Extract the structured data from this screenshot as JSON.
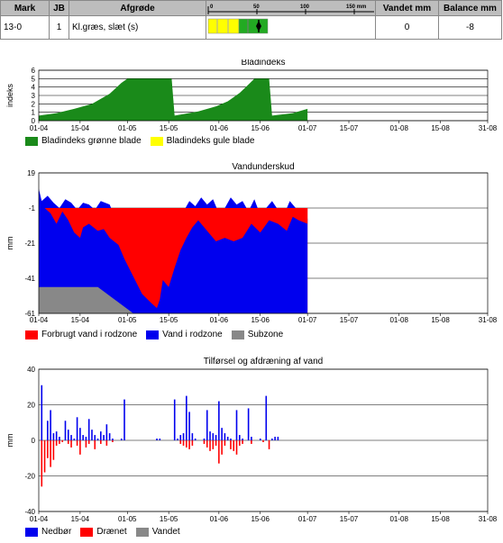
{
  "table": {
    "headers": [
      "Mark",
      "JB",
      "Afgrøde",
      "",
      "Vandet mm",
      "Balance mm"
    ],
    "scale_ticks": [
      "0",
      "50",
      "100",
      "150 mm"
    ],
    "row": {
      "mark": "13-0",
      "jb": "1",
      "crop": "Kl.græs,  slæt (s)",
      "vandet": "0",
      "balance": "-8"
    }
  },
  "chart_data": [
    {
      "type": "area",
      "title": "Bladindeks",
      "ylabel": "indeks",
      "ylim": [
        0,
        6
      ],
      "yticks": [
        "0",
        "1",
        "2",
        "3",
        "4",
        "5",
        "6"
      ],
      "x_ticks": [
        "01-04",
        "15-04",
        "01-05",
        "15-05",
        "01-06",
        "15-06",
        "01-07",
        "15-07",
        "01-08",
        "15-08",
        "31-08"
      ],
      "series": [
        {
          "name": "Bladindeks grønne blade",
          "color": "#1a8a1a",
          "points": [
            [
              0,
              0.6
            ],
            [
              6,
              0.9
            ],
            [
              12,
              1.4
            ],
            [
              18,
              2.0
            ],
            [
              24,
              3.2
            ],
            [
              28,
              4.5
            ],
            [
              30,
              5.0
            ],
            [
              45,
              5.0
            ],
            [
              46,
              0.6
            ],
            [
              54,
              1.1
            ],
            [
              60,
              1.7
            ],
            [
              64,
              2.3
            ],
            [
              68,
              3.3
            ],
            [
              71,
              4.3
            ],
            [
              73,
              5.0
            ],
            [
              78,
              5.0
            ],
            [
              79,
              0.6
            ],
            [
              86,
              0.9
            ],
            [
              91,
              1.4
            ]
          ]
        },
        {
          "name": "Bladindeks gule blade",
          "color": "#ffff00",
          "points": []
        }
      ]
    },
    {
      "type": "area",
      "title": "Vandunderskud",
      "ylabel": "mm",
      "ylim": [
        -61,
        19
      ],
      "yticks": [
        "19",
        "-1",
        "-21",
        "-41",
        "-61"
      ],
      "x_ticks": [
        "01-04",
        "15-04",
        "01-05",
        "15-05",
        "01-06",
        "15-06",
        "01-07",
        "15-07",
        "01-08",
        "15-08",
        "31-08"
      ],
      "series": [
        {
          "name": "Forbrugt vand i rodzone",
          "color": "#ff0000",
          "points": [
            [
              0,
              4
            ],
            [
              2,
              0
            ],
            [
              4,
              -4
            ],
            [
              6,
              -10
            ],
            [
              8,
              -3
            ],
            [
              10,
              -8
            ],
            [
              12,
              -15
            ],
            [
              14,
              -18
            ],
            [
              15,
              -12
            ],
            [
              17,
              -10
            ],
            [
              20,
              -14
            ],
            [
              22,
              -13
            ],
            [
              24,
              -18
            ],
            [
              27,
              -22
            ],
            [
              29,
              -30
            ],
            [
              32,
              -40
            ],
            [
              35,
              -50
            ],
            [
              38,
              -55
            ],
            [
              40,
              -58
            ],
            [
              41,
              -53
            ],
            [
              42,
              -42
            ],
            [
              44,
              -46
            ],
            [
              46,
              -35
            ],
            [
              48,
              -25
            ],
            [
              50,
              -18
            ],
            [
              52,
              -12
            ],
            [
              54,
              -8
            ],
            [
              57,
              -14
            ],
            [
              60,
              -20
            ],
            [
              63,
              -18
            ],
            [
              66,
              -20
            ],
            [
              69,
              -18
            ],
            [
              72,
              -10
            ],
            [
              75,
              -15
            ],
            [
              78,
              -8
            ],
            [
              81,
              -10
            ],
            [
              84,
              -14
            ],
            [
              86,
              -6
            ],
            [
              88,
              -8
            ],
            [
              91,
              -10
            ]
          ]
        },
        {
          "name": "Vand i rodzone",
          "color": "#0000ee",
          "points": [
            [
              0,
              10
            ],
            [
              1,
              3
            ],
            [
              3,
              6
            ],
            [
              5,
              2
            ],
            [
              7,
              -1
            ],
            [
              9,
              4
            ],
            [
              11,
              2
            ],
            [
              13,
              -2
            ],
            [
              15,
              2
            ],
            [
              17,
              1
            ],
            [
              19,
              -2
            ],
            [
              21,
              3
            ],
            [
              24,
              1
            ],
            [
              26,
              -7
            ],
            [
              28,
              -2
            ],
            [
              30,
              -8
            ],
            [
              32,
              -4
            ],
            [
              33,
              -8
            ],
            [
              35,
              -20
            ],
            [
              37,
              -8
            ],
            [
              38,
              -10
            ],
            [
              39,
              -4
            ],
            [
              41,
              -10
            ],
            [
              43,
              -1
            ],
            [
              47,
              -1
            ],
            [
              49,
              -3
            ],
            [
              51,
              3
            ],
            [
              53,
              0
            ],
            [
              55,
              5
            ],
            [
              57,
              1
            ],
            [
              59,
              4
            ],
            [
              61,
              -4
            ],
            [
              63,
              -1
            ],
            [
              65,
              5
            ],
            [
              67,
              1
            ],
            [
              69,
              3
            ],
            [
              71,
              -3
            ],
            [
              73,
              4
            ],
            [
              75,
              -5
            ],
            [
              77,
              -1
            ],
            [
              79,
              3
            ],
            [
              81,
              -2
            ],
            [
              83,
              -5
            ],
            [
              85,
              3
            ],
            [
              87,
              -1
            ],
            [
              89,
              -7
            ],
            [
              91,
              -7
            ]
          ]
        },
        {
          "name": "Subzone",
          "color": "#888888",
          "points": [
            [
              0,
              -46
            ],
            [
              20,
              -46
            ],
            [
              32,
              -61
            ]
          ]
        }
      ]
    },
    {
      "type": "bar",
      "title": "Tilførsel og afdræning af vand",
      "ylabel": "mm",
      "ylim": [
        -40,
        40
      ],
      "yticks": [
        "40",
        "20",
        "0",
        "-20",
        "-40"
      ],
      "x_ticks": [
        "01-04",
        "15-04",
        "01-05",
        "15-05",
        "01-06",
        "15-06",
        "01-07",
        "15-07",
        "01-08",
        "15-08",
        "31-08"
      ],
      "series": [
        {
          "name": "Nedbør",
          "color": "#0000ee",
          "points": [
            [
              1,
              31
            ],
            [
              3,
              11
            ],
            [
              4,
              17
            ],
            [
              5,
              4
            ],
            [
              6,
              5
            ],
            [
              7,
              2
            ],
            [
              9,
              11
            ],
            [
              10,
              6
            ],
            [
              11,
              3
            ],
            [
              12,
              1
            ],
            [
              13,
              13
            ],
            [
              14,
              7
            ],
            [
              15,
              3
            ],
            [
              16,
              2
            ],
            [
              17,
              12
            ],
            [
              18,
              6
            ],
            [
              19,
              3
            ],
            [
              20,
              1
            ],
            [
              21,
              5
            ],
            [
              22,
              3
            ],
            [
              23,
              9
            ],
            [
              24,
              4
            ],
            [
              25,
              1
            ],
            [
              28,
              1
            ],
            [
              29,
              23
            ],
            [
              40,
              1
            ],
            [
              41,
              1
            ],
            [
              46,
              23
            ],
            [
              47,
              1
            ],
            [
              48,
              3
            ],
            [
              49,
              4
            ],
            [
              50,
              25
            ],
            [
              51,
              16
            ],
            [
              52,
              4
            ],
            [
              53,
              1
            ],
            [
              56,
              1
            ],
            [
              57,
              17
            ],
            [
              58,
              5
            ],
            [
              59,
              4
            ],
            [
              60,
              3
            ],
            [
              61,
              22
            ],
            [
              62,
              7
            ],
            [
              63,
              4
            ],
            [
              64,
              2
            ],
            [
              65,
              1
            ],
            [
              67,
              17
            ],
            [
              68,
              3
            ],
            [
              69,
              1
            ],
            [
              71,
              18
            ],
            [
              72,
              2
            ],
            [
              75,
              1
            ],
            [
              77,
              25
            ],
            [
              79,
              1
            ],
            [
              80,
              2
            ],
            [
              81,
              2
            ]
          ]
        },
        {
          "name": "Drænet",
          "color": "#ff0000",
          "points": [
            [
              1,
              -26
            ],
            [
              2,
              -18
            ],
            [
              3,
              -10
            ],
            [
              4,
              -15
            ],
            [
              5,
              -11
            ],
            [
              6,
              -3
            ],
            [
              7,
              -2
            ],
            [
              8,
              -1
            ],
            [
              10,
              -2
            ],
            [
              11,
              -4
            ],
            [
              13,
              -3
            ],
            [
              14,
              -8
            ],
            [
              16,
              -4
            ],
            [
              17,
              -2
            ],
            [
              19,
              -5
            ],
            [
              21,
              -2
            ],
            [
              23,
              -3
            ],
            [
              25,
              -1
            ],
            [
              48,
              -2
            ],
            [
              49,
              -3
            ],
            [
              50,
              -4
            ],
            [
              51,
              -5
            ],
            [
              52,
              -3
            ],
            [
              56,
              -2
            ],
            [
              57,
              -4
            ],
            [
              58,
              -6
            ],
            [
              59,
              -5
            ],
            [
              60,
              -3
            ],
            [
              61,
              -13
            ],
            [
              62,
              -8
            ],
            [
              63,
              -3
            ],
            [
              65,
              -5
            ],
            [
              66,
              -6
            ],
            [
              67,
              -8
            ],
            [
              68,
              -3
            ],
            [
              69,
              -2
            ],
            [
              72,
              -2
            ],
            [
              76,
              -1
            ],
            [
              78,
              -5
            ]
          ]
        },
        {
          "name": "Vandet",
          "color": "#888888",
          "points": []
        }
      ]
    }
  ],
  "legends": [
    [
      "Bladindeks grønne blade",
      "Bladindeks gule blade"
    ],
    [
      "Forbrugt vand i rodzone",
      "Vand i rodzone",
      "Subzone"
    ],
    [
      "Nedbør",
      "Drænet",
      "Vandet"
    ]
  ],
  "colors": {
    "green": "#1a8a1a",
    "yellow": "#ffff00",
    "red": "#ff0000",
    "blue": "#0000ee",
    "grey": "#888888"
  }
}
